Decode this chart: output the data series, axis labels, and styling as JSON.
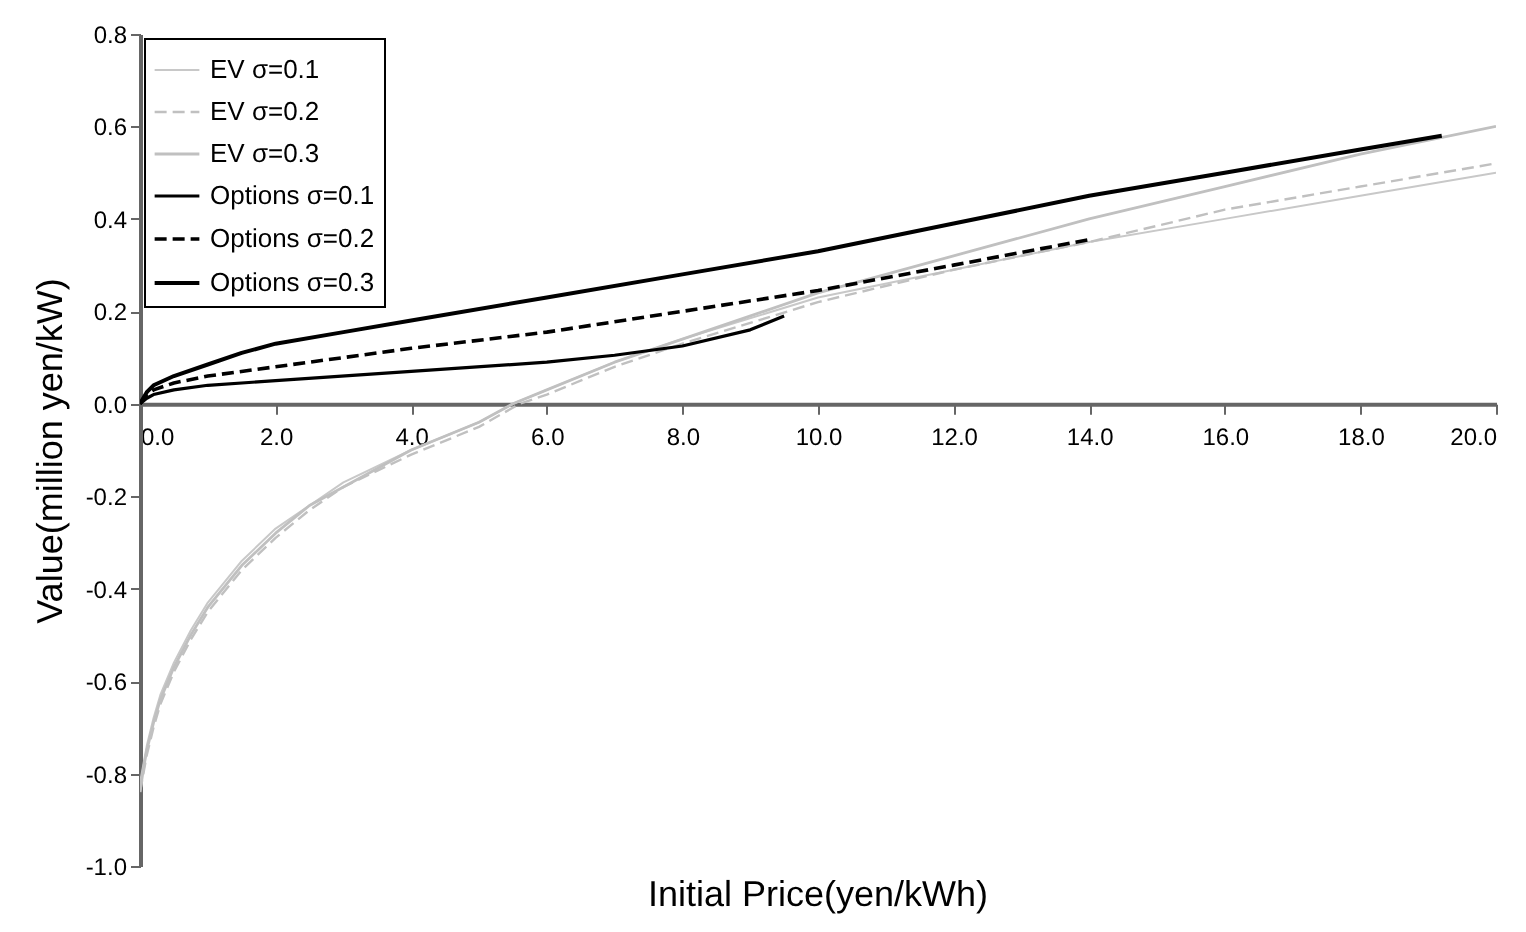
{
  "chart_data": {
    "type": "line",
    "xlabel": "Initial Price(yen/kWh)",
    "ylabel": "Value(million yen/kW)",
    "xlim": [
      0,
      20
    ],
    "xticks": [
      {
        "value": 0,
        "label": "0.0"
      },
      {
        "value": 2,
        "label": "2.0"
      },
      {
        "value": 4,
        "label": "4.0"
      },
      {
        "value": 6,
        "label": "6.0"
      },
      {
        "value": 8,
        "label": "8.0"
      },
      {
        "value": 10,
        "label": "10.0"
      },
      {
        "value": 12,
        "label": "12.0"
      },
      {
        "value": 14,
        "label": "14.0"
      },
      {
        "value": 16,
        "label": "16.0"
      },
      {
        "value": 18,
        "label": "18.0"
      },
      {
        "value": 20,
        "label": "20.0"
      }
    ],
    "ylim": [
      -1,
      0.8
    ],
    "yticks": [
      {
        "value": -1,
        "label": "-1.0"
      },
      {
        "value": -0.8,
        "label": "-0.8"
      },
      {
        "value": -0.6,
        "label": "-0.6"
      },
      {
        "value": -0.4,
        "label": "-0.4"
      },
      {
        "value": -0.2,
        "label": "-0.2"
      },
      {
        "value": 0,
        "label": "0.0"
      },
      {
        "value": 0.2,
        "label": "0.2"
      },
      {
        "value": 0.4,
        "label": "0.4"
      },
      {
        "value": 0.6,
        "label": "0.6"
      },
      {
        "value": 0.8,
        "label": "0.8"
      }
    ],
    "grid": false,
    "legend": "top left",
    "series": [
      {
        "name": "EV σ=0.1",
        "color": "#c8c8c8",
        "line_style": "solid",
        "x": [
          0,
          0.05,
          0.1,
          0.2,
          0.3,
          0.5,
          0.75,
          1,
          1.5,
          2,
          2.5,
          3,
          4,
          5,
          5.5,
          6,
          7,
          8,
          10,
          12,
          14,
          16,
          18,
          20
        ],
        "values": [
          -0.82,
          -0.78,
          -0.74,
          -0.68,
          -0.63,
          -0.56,
          -0.49,
          -0.43,
          -0.34,
          -0.27,
          -0.22,
          -0.17,
          -0.1,
          -0.04,
          0,
          0.03,
          0.09,
          0.14,
          0.23,
          0.29,
          0.35,
          0.4,
          0.45,
          0.5
        ]
      },
      {
        "name": "EV σ=0.2",
        "color": "#c0c0c0",
        "line_style": "dashed",
        "x": [
          0,
          0.05,
          0.1,
          0.2,
          0.3,
          0.5,
          0.75,
          1,
          1.5,
          2,
          2.5,
          3,
          4,
          5,
          5.6,
          6,
          7,
          8,
          10,
          12,
          14,
          16,
          18,
          20
        ],
        "values": [
          -0.84,
          -0.8,
          -0.76,
          -0.7,
          -0.65,
          -0.58,
          -0.51,
          -0.45,
          -0.36,
          -0.29,
          -0.23,
          -0.18,
          -0.11,
          -0.05,
          0,
          0.02,
          0.08,
          0.13,
          0.22,
          0.29,
          0.35,
          0.42,
          0.47,
          0.52
        ]
      },
      {
        "name": "EV σ=0.3",
        "color": "#c0c0c0",
        "line_style": "solid",
        "x": [
          0,
          0.05,
          0.1,
          0.2,
          0.3,
          0.5,
          0.75,
          1,
          1.5,
          2,
          2.5,
          3,
          4,
          5,
          5.5,
          6,
          7,
          8,
          10,
          12,
          14,
          16,
          18,
          20
        ],
        "values": [
          -0.84,
          -0.79,
          -0.75,
          -0.69,
          -0.64,
          -0.57,
          -0.5,
          -0.44,
          -0.35,
          -0.28,
          -0.22,
          -0.18,
          -0.1,
          -0.04,
          0,
          0.03,
          0.09,
          0.14,
          0.24,
          0.32,
          0.4,
          0.47,
          0.54,
          0.6
        ]
      },
      {
        "name": "Options σ=0.1",
        "color": "#000000",
        "line_style": "solid",
        "x": [
          0,
          0.1,
          0.2,
          0.5,
          1,
          2,
          4,
          6,
          7,
          8,
          9,
          9.5
        ],
        "values": [
          0,
          0.012,
          0.02,
          0.03,
          0.04,
          0.05,
          0.07,
          0.09,
          0.105,
          0.125,
          0.16,
          0.19
        ]
      },
      {
        "name": "Options σ=0.2",
        "color": "#000000",
        "line_style": "dashed",
        "x": [
          0,
          0.1,
          0.2,
          0.5,
          1,
          2,
          3,
          4,
          6,
          8,
          10,
          12,
          14
        ],
        "values": [
          0,
          0.02,
          0.03,
          0.045,
          0.06,
          0.08,
          0.1,
          0.12,
          0.155,
          0.2,
          0.245,
          0.3,
          0.355
        ]
      },
      {
        "name": "Options σ=0.3",
        "color": "#000000",
        "line_style": "solid",
        "x": [
          0,
          0.1,
          0.2,
          0.5,
          1,
          1.5,
          2,
          3,
          4,
          6,
          8,
          10,
          12,
          14,
          16,
          18,
          19.2
        ],
        "values": [
          0,
          0.025,
          0.04,
          0.06,
          0.085,
          0.11,
          0.13,
          0.155,
          0.18,
          0.23,
          0.28,
          0.33,
          0.39,
          0.45,
          0.5,
          0.55,
          0.58
        ]
      }
    ]
  }
}
